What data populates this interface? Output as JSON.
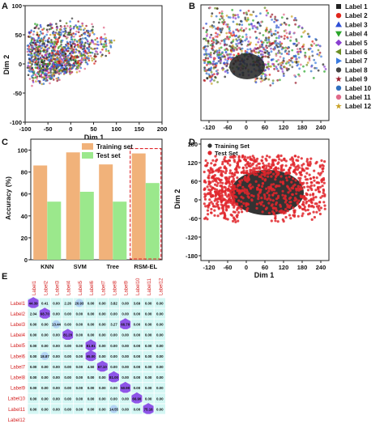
{
  "panels": {
    "A": {
      "letter": "A",
      "chart_type": "scatter",
      "xlabel": "Dim 1",
      "ylabel": "Dim 2",
      "xlim": [
        -100,
        200
      ],
      "ylim": [
        -100,
        100
      ],
      "xticks": [
        "-100",
        "-50",
        "0",
        "50",
        "100",
        "150",
        "200"
      ],
      "yticks": [
        "-100",
        "-50",
        "0",
        "50",
        "100"
      ]
    },
    "B": {
      "letter": "B",
      "chart_type": "scatter",
      "xticks": [
        "-120",
        "-60",
        "0",
        "60",
        "120",
        "180",
        "240"
      ],
      "legend": [
        "Label 1",
        "Label 2",
        "Label 3",
        "Label 4",
        "Label 5",
        "Label 6",
        "Label 7",
        "Label 8",
        "Label 9",
        "Label 10",
        "Label 11",
        "Label 12"
      ],
      "legend_colors": [
        "#222222",
        "#e0261c",
        "#2f4fd6",
        "#2aa52a",
        "#8a3fd0",
        "#6b8e23",
        "#3a7be0",
        "#444444",
        "#9b1c2c",
        "#2f6fbf",
        "#e06a8a",
        "#c9a227"
      ],
      "legend_symbols": [
        "square",
        "circle",
        "triangle-up",
        "triangle-down",
        "diamond",
        "triangle-left",
        "triangle-right",
        "hexagon",
        "star",
        "pentagon",
        "circle",
        "star"
      ]
    },
    "C": {
      "letter": "C",
      "chart_type": "bar",
      "ylabel": "Accuracy (%)",
      "ylim": [
        0,
        110
      ],
      "yticks": [
        "0",
        "20",
        "40",
        "60",
        "80",
        "100"
      ]
    },
    "D": {
      "letter": "D",
      "chart_type": "scatter",
      "xlabel": "Dim 1",
      "ylabel": "Dim 2",
      "xticks": [
        "-120",
        "-60",
        "0",
        "60",
        "120",
        "180",
        "240"
      ],
      "yticks": [
        "180",
        "120",
        "60",
        "0",
        "-60",
        "-120",
        "-180"
      ],
      "legend": [
        "Training Set",
        "Test Set"
      ]
    },
    "E": {
      "letter": "E",
      "chart_type": "heatmap"
    }
  },
  "chart_data": [
    {
      "panel": "C",
      "type": "bar",
      "categories": [
        "KNN",
        "SVM",
        "Tree",
        "RSM-EL"
      ],
      "series": [
        {
          "name": "Training set",
          "values": [
            86,
            98,
            87,
            97
          ],
          "color": "#f1b27a"
        },
        {
          "name": "Test set",
          "values": [
            53,
            62,
            53,
            70
          ],
          "color": "#9be88c"
        }
      ],
      "ylabel": "Accuracy (%)",
      "ylim": [
        0,
        110
      ],
      "highlighted_category": "RSM-EL"
    },
    {
      "panel": "E",
      "type": "heatmap",
      "columns": [
        "Label1",
        "Label2",
        "Label3",
        "Label4",
        "Label5",
        "Label6",
        "Label7",
        "Label8",
        "Label9",
        "Label10",
        "Label11",
        "Label12"
      ],
      "rows": [
        "Label1",
        "Label2",
        "Label3",
        "Label4",
        "Label5",
        "Label6",
        "Label7",
        "Label8",
        "Label9",
        "Label10",
        "Label11",
        "Label12"
      ],
      "values": [
        [
          "44.39",
          "0.41",
          "0.00",
          "2.26",
          "20.93",
          "0.00",
          "0.00",
          "3.82",
          "0.00",
          "3.69",
          "0.00",
          "0.00"
        ],
        [
          "2.04",
          "68.70",
          "0.00",
          "0.00",
          "0.00",
          "0.00",
          "0.00",
          "0.00",
          "0.00",
          "0.00",
          "0.00",
          "0.00"
        ],
        [
          "0.00",
          "0.00",
          "13.44",
          "0.00",
          "0.00",
          "0.00",
          "0.00",
          "3.27",
          "66.70",
          "0.00",
          "0.00",
          "0.00"
        ],
        [
          "0.00",
          "0.00",
          "0.00",
          "81.20",
          "0.00",
          "0.00",
          "0.00",
          "0.00",
          "0.00",
          "0.00",
          "0.00",
          "0.00"
        ],
        [
          "0.00",
          "0.00",
          "0.00",
          "0.00",
          "0.00",
          "81.91",
          "0.00",
          "0.00",
          "0.00",
          "0.00",
          "0.00",
          "0.00"
        ],
        [
          "0.00",
          "18.87",
          "0.00",
          "0.00",
          "0.00",
          "65.00",
          "0.00",
          "0.00",
          "0.00",
          "0.00",
          "0.00",
          "0.00"
        ],
        [
          "0.00",
          "0.00",
          "0.00",
          "0.00",
          "0.00",
          "4.50",
          "67.10",
          "0.00",
          "0.00",
          "0.00",
          "0.00",
          "0.00"
        ],
        [
          "0.00",
          "0.00",
          "0.00",
          "0.00",
          "0.00",
          "0.00",
          "0.00",
          "81.00",
          "0.00",
          "0.00",
          "0.00",
          "0.00"
        ],
        [
          "0.00",
          "0.00",
          "0.00",
          "0.00",
          "0.00",
          "0.00",
          "0.00",
          "0.00",
          "50.90",
          "0.00",
          "0.00",
          "0.00"
        ],
        [
          "0.00",
          "0.00",
          "0.00",
          "0.00",
          "0.00",
          "0.00",
          "0.00",
          "0.00",
          "0.00",
          "66.90",
          "0.00",
          "0.00"
        ],
        [
          "0.00",
          "0.00",
          "0.00",
          "0.00",
          "0.00",
          "0.00",
          "0.00",
          "14.55",
          "0.00",
          "0.00",
          "75.16",
          "0.00"
        ],
        [
          "",
          "",
          "",
          "",
          "",
          "",
          "",
          "",
          "",
          "",
          "",
          ""
        ]
      ],
      "highlight_color": "#8e55e8",
      "cell_color": "#d4f7f4"
    }
  ]
}
